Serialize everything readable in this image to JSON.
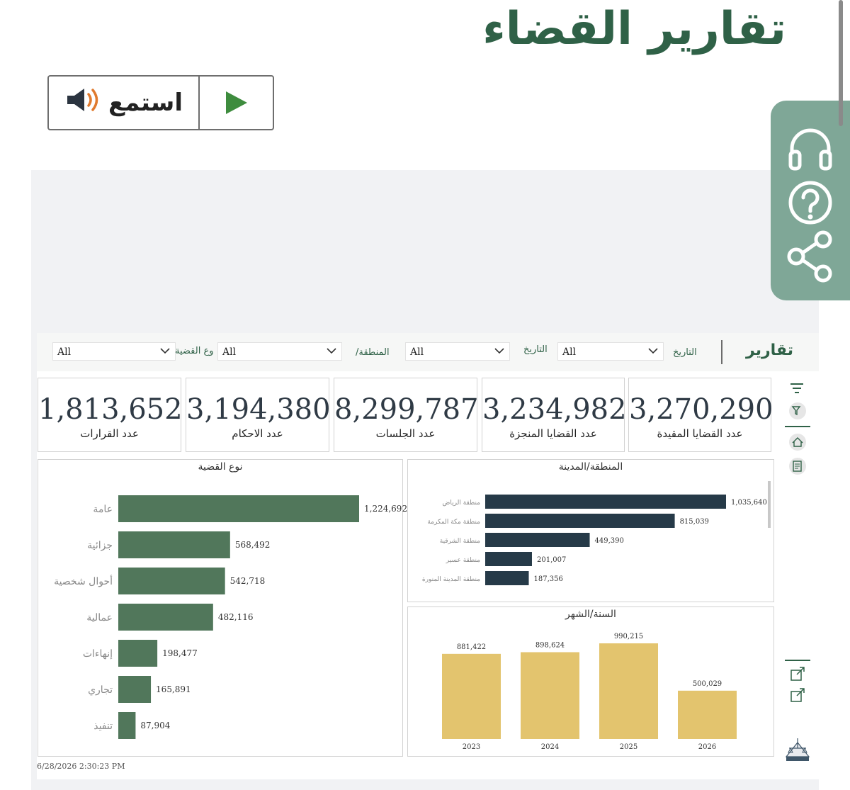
{
  "page": {
    "title": "تقارير القضاء"
  },
  "listen_button": {
    "label": "استمع"
  },
  "report": {
    "title": "تقارير",
    "filters": [
      {
        "label": "التاريخ",
        "value": "All"
      },
      {
        "label": "التاريخ",
        "value": "All"
      },
      {
        "label": "المنطقة/",
        "value": "All"
      },
      {
        "label": "وع القضية",
        "value": "All"
      }
    ],
    "kpis": [
      {
        "value": "3,270,290",
        "label": "عدد القضايا المقيدة"
      },
      {
        "value": "3,234,982",
        "label": "عدد القضايا المنجزة"
      },
      {
        "value": "8,299,787",
        "label": "عدد الجلسات"
      },
      {
        "value": "3,194,380",
        "label": "عدد الاحكام"
      },
      {
        "value": "1,813,652",
        "label": "عدد القرارات"
      }
    ],
    "timestamp": "6/28/2026 2:30:23 PM"
  },
  "colors": {
    "brand": "#2f6147",
    "case_bar": "#51775b",
    "region_bar": "#263a48",
    "year_bar": "#e3c46e"
  },
  "chart_data": [
    {
      "type": "bar",
      "orientation": "horizontal",
      "title": "نوع القضية",
      "categories": [
        "عامة",
        "جزائية",
        "أحوال شخصية",
        "عمالية",
        "إنهاءات",
        "تجاري",
        "تنفيذ"
      ],
      "values": [
        1224692,
        568492,
        542718,
        482116,
        198477,
        165891,
        87904
      ],
      "value_labels": [
        "1,224,692",
        "568,492",
        "542,718",
        "482,116",
        "198,477",
        "165,891",
        "87,904"
      ]
    },
    {
      "type": "bar",
      "orientation": "horizontal",
      "title": "المنطقة/المدينة",
      "categories": [
        "منطقة الرياض",
        "منطقة مكة المكرمة",
        "منطقة الشرقية",
        "منطقة عسير",
        "منطقة المدينة المنورة"
      ],
      "values": [
        1035640,
        815039,
        449390,
        201007,
        187356
      ],
      "value_labels": [
        "1,035,640",
        "815,039",
        "449,390",
        "201,007",
        "187,356"
      ]
    },
    {
      "type": "bar",
      "orientation": "vertical",
      "title": "السنة/الشهر",
      "categories": [
        "2023",
        "2024",
        "2025",
        "2026"
      ],
      "values": [
        881422,
        898624,
        990215,
        500029
      ],
      "value_labels": [
        "881,422",
        "898,624",
        "990,215",
        "500,029"
      ]
    }
  ]
}
